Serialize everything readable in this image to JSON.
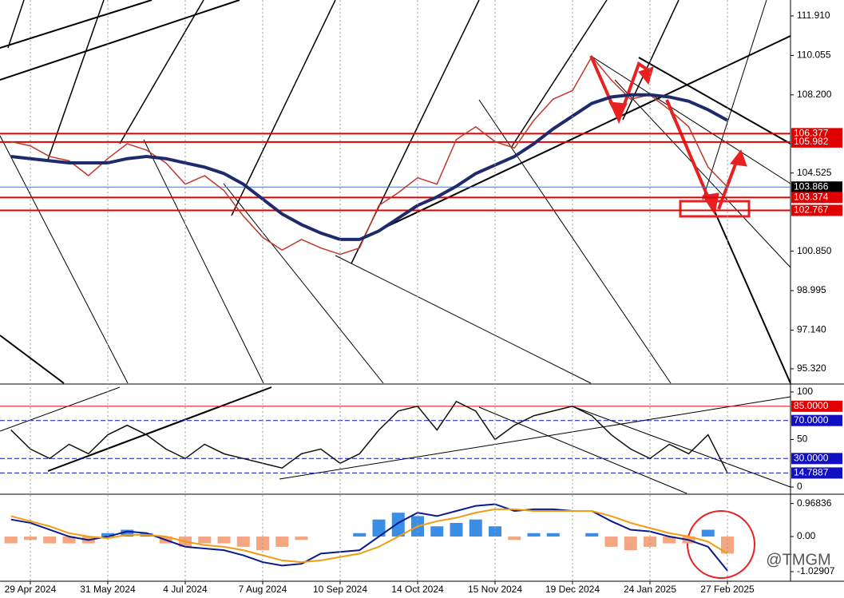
{
  "chart_data": [
    {
      "type": "line",
      "categories": [
        null,
        "29 Apr 2024",
        null,
        null,
        null,
        "31 May 2024",
        null,
        null,
        null,
        "4 Jul 2024",
        null,
        null,
        null,
        "7 Aug 2024",
        null,
        null,
        null,
        "10 Sep 2024",
        null,
        null,
        null,
        "14 Oct 2024",
        null,
        null,
        null,
        "15 Nov 2024",
        null,
        null,
        null,
        "19 Dec 2024",
        null,
        null,
        null,
        "24 Jan 2025",
        null,
        null,
        null,
        "27 Feb 2025"
      ],
      "series": [
        {
          "color": "#c0392b",
          "values": [
            106.0,
            105.8,
            105.3,
            105.1,
            104.4,
            105.2,
            105.9,
            105.6,
            105.0,
            104.0,
            104.4,
            103.7,
            102.5,
            101.5,
            100.9,
            101.4,
            101.0,
            100.7,
            101.0,
            103.0,
            103.6,
            104.3,
            104.0,
            106.1,
            106.7,
            106.0,
            105.7,
            107.0,
            108.0,
            108.4,
            110.0,
            108.9,
            108.0,
            108.2,
            107.5,
            106.7,
            104.8,
            103.866
          ]
        },
        {
          "color": "#1f2a6b",
          "values": [
            105.3,
            105.2,
            105.1,
            105.0,
            105.0,
            105.0,
            105.2,
            105.3,
            105.2,
            105.0,
            104.8,
            104.5,
            104.0,
            103.3,
            102.6,
            102.1,
            101.7,
            101.4,
            101.4,
            101.8,
            102.4,
            103.0,
            103.4,
            103.9,
            104.5,
            104.9,
            105.3,
            105.9,
            106.6,
            107.2,
            107.8,
            108.1,
            108.2,
            108.2,
            108.1,
            107.9,
            107.5,
            107.0
          ]
        }
      ],
      "ylim": [
        94.64,
        112.66
      ],
      "yticks": [
        {
          "value": 111.91,
          "label": "111.910"
        },
        110.055,
        {
          "value": 108.2,
          "label": "108.200"
        },
        104.525,
        {
          "value": 100.85,
          "label": "100.850"
        },
        98.995,
        {
          "value": 97.14,
          "label": "97.140"
        },
        {
          "value": 95.32,
          "label": "95.320"
        }
      ],
      "hlines": [
        {
          "value": 106.377,
          "color": "#e00000"
        },
        {
          "value": 105.982,
          "color": "#e00000"
        },
        {
          "value": 103.866,
          "color": "#000000"
        },
        {
          "value": 103.374,
          "color": "#e00000"
        },
        {
          "value": 102.767,
          "color": "#e00000"
        }
      ]
    },
    {
      "type": "line",
      "series": [
        {
          "color": "#111111",
          "values": [
            60,
            40,
            30,
            45,
            35,
            55,
            65,
            55,
            40,
            30,
            45,
            35,
            30,
            25,
            20,
            35,
            40,
            25,
            35,
            60,
            80,
            85,
            60,
            90,
            80,
            50,
            65,
            75,
            80,
            85,
            75,
            55,
            40,
            30,
            45,
            35,
            55,
            15
          ]
        }
      ],
      "ylim": [
        -6.7,
        106.7
      ],
      "yticks": [
        100,
        50,
        0
      ],
      "hlines": [
        {
          "value": 85,
          "label": "85.0000",
          "color": "#e00000"
        },
        {
          "value": 70,
          "label": "70.0000",
          "color": "#1010c0"
        },
        {
          "value": 30,
          "label": "30.0000",
          "color": "#1010c0"
        },
        {
          "value": 14.7887,
          "color": "#1010c0"
        }
      ]
    },
    {
      "type": "macd",
      "histogram": [
        -0.2,
        -0.1,
        -0.2,
        -0.2,
        -0.2,
        0.1,
        0.2,
        0.1,
        -0.2,
        -0.3,
        -0.2,
        -0.2,
        -0.3,
        -0.4,
        -0.3,
        -0.1,
        0.0,
        0.0,
        0.1,
        0.5,
        0.7,
        0.6,
        0.3,
        0.4,
        0.5,
        0.3,
        -0.1,
        0.1,
        0.1,
        0.0,
        0.1,
        -0.3,
        -0.4,
        -0.3,
        -0.2,
        -0.2,
        0.2,
        -0.5
      ],
      "up_color": "#3a8ee6",
      "down_color": "#f4a582",
      "series": [
        {
          "color": "#0a1a8c",
          "values": [
            0.5,
            0.4,
            0.2,
            0.0,
            -0.1,
            0.0,
            0.15,
            0.1,
            -0.1,
            -0.3,
            -0.35,
            -0.4,
            -0.55,
            -0.75,
            -0.85,
            -0.8,
            -0.5,
            -0.45,
            -0.4,
            0.0,
            0.4,
            0.7,
            0.6,
            0.75,
            0.9,
            0.95,
            0.75,
            0.8,
            0.8,
            0.75,
            0.75,
            0.45,
            0.2,
            0.15,
            0.0,
            -0.1,
            -0.3,
            -1.0
          ]
        },
        {
          "color": "#f39c12",
          "values": [
            0.6,
            0.45,
            0.3,
            0.1,
            0.0,
            -0.05,
            0.05,
            0.05,
            0.0,
            -0.15,
            -0.25,
            -0.3,
            -0.4,
            -0.55,
            -0.7,
            -0.75,
            -0.7,
            -0.6,
            -0.5,
            -0.3,
            0.0,
            0.3,
            0.45,
            0.55,
            0.7,
            0.8,
            0.8,
            0.75,
            0.75,
            0.75,
            0.75,
            0.6,
            0.4,
            0.25,
            0.1,
            0.0,
            -0.15,
            -0.5
          ]
        }
      ],
      "ylim": [
        -1.287,
        1.195
      ],
      "yticks": [
        0.96836,
        {
          "value": 0,
          "label": "0.00"
        },
        -1.02907
      ],
      "annotation": "@TMGM"
    }
  ]
}
